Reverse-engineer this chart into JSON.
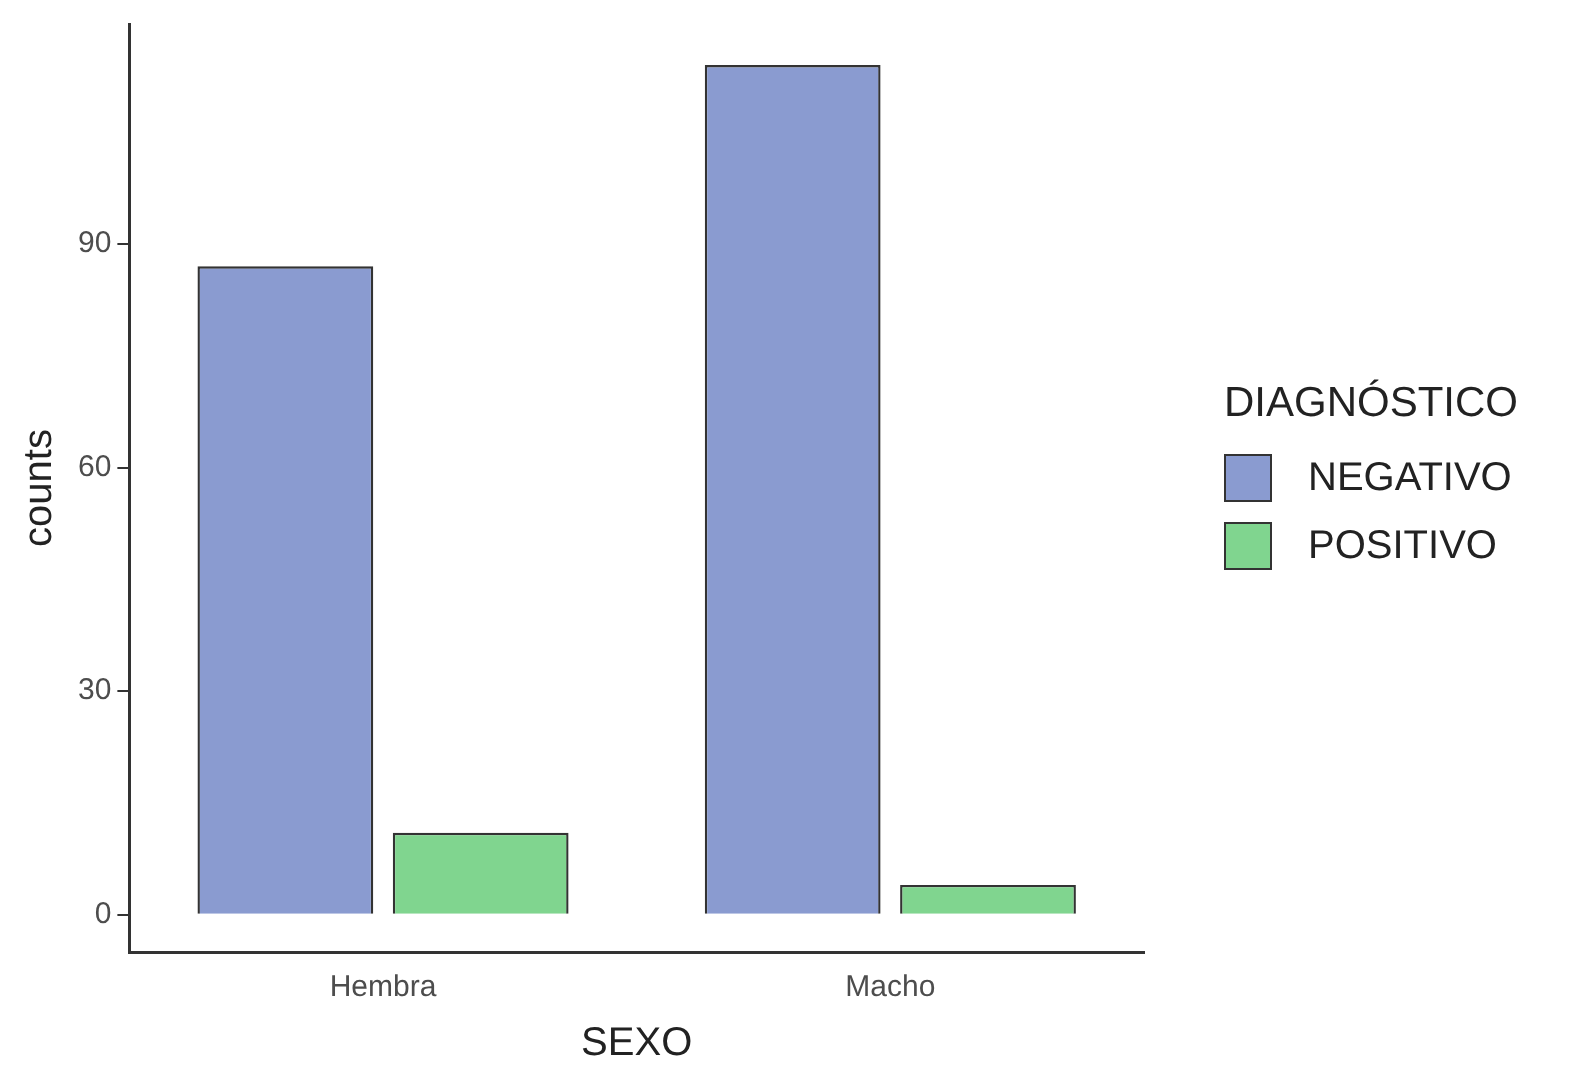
{
  "chart_data": {
    "type": "bar",
    "xlabel": "SEXO",
    "ylabel": "counts",
    "legend_title": "DIAGNÓSTICO",
    "legend": "right",
    "grid": false,
    "categories": [
      "Hembra",
      "Macho"
    ],
    "series": [
      {
        "name": "NEGATIVO",
        "color": "#8a9bd0",
        "values": [
          87,
          114
        ]
      },
      {
        "name": "POSITIVO",
        "color": "#80d58f",
        "values": [
          11,
          4
        ]
      }
    ],
    "ylim": [
      -5,
      119.5
    ],
    "yticks": [
      0,
      30,
      60,
      90
    ]
  }
}
